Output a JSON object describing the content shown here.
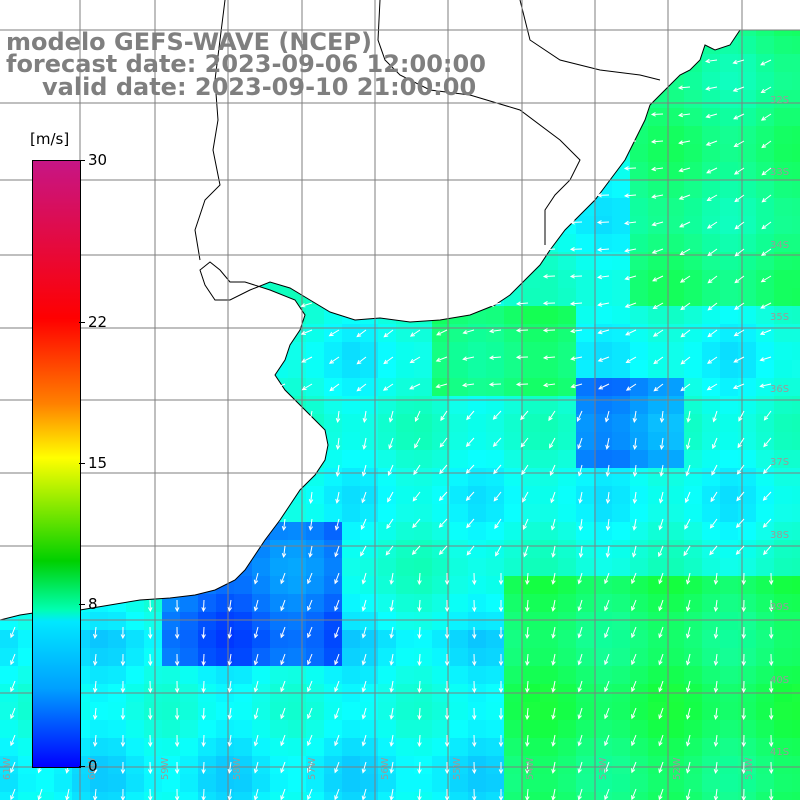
{
  "title": {
    "line1": "modelo GEFS-WAVE (NCEP)",
    "line2": "forecast date: 2023-09-06 12:00:00",
    "line3": "valid date: 2023-09-10 21:00:00"
  },
  "colorbar": {
    "units": "[m/s]",
    "min": 0,
    "max": 30,
    "ticks": [
      "30",
      "22",
      "15",
      "8",
      "0"
    ],
    "tick_values": [
      30,
      22,
      15,
      8,
      0
    ]
  },
  "grid": {
    "lat_labels": [
      "32S",
      "33S",
      "34S",
      "35S",
      "36S",
      "37S",
      "38S",
      "39S",
      "40S",
      "41S"
    ],
    "lon_labels": [
      "61W",
      "60W",
      "59W",
      "58W",
      "57W",
      "56W",
      "55W",
      "54W",
      "53W",
      "52W",
      "51W"
    ]
  },
  "colors": {
    "land": "#ffffff",
    "coast": "#000000",
    "grid": "#7f7f7f",
    "arrows": "#ffffff",
    "title": "#7f7f7f"
  }
}
